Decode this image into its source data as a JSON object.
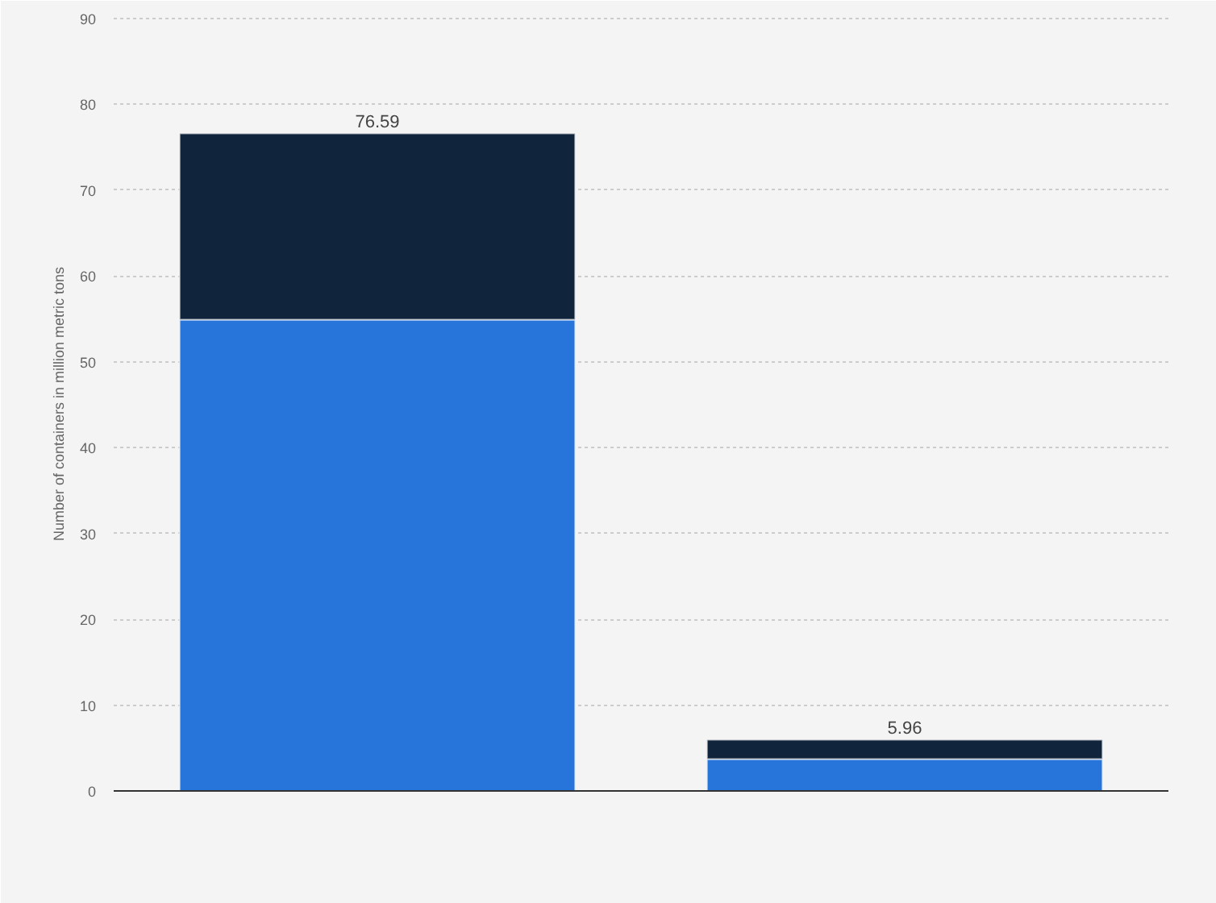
{
  "chart_data": {
    "type": "bar",
    "ylabel": "Number of containers in million metric tons",
    "categories": [
      null,
      null
    ],
    "stacked": true,
    "series": [
      {
        "color": "#2775db",
        "values": [
          54.9,
          3.7
        ]
      },
      {
        "color": "#10253b",
        "values": [
          21.7,
          2.26
        ]
      }
    ],
    "totals": [
      "76.59",
      "5.96"
    ],
    "ylim": [
      0,
      90
    ],
    "yticks": [
      0,
      10,
      20,
      30,
      40,
      50,
      60,
      70,
      80,
      90
    ],
    "grid": "y"
  }
}
